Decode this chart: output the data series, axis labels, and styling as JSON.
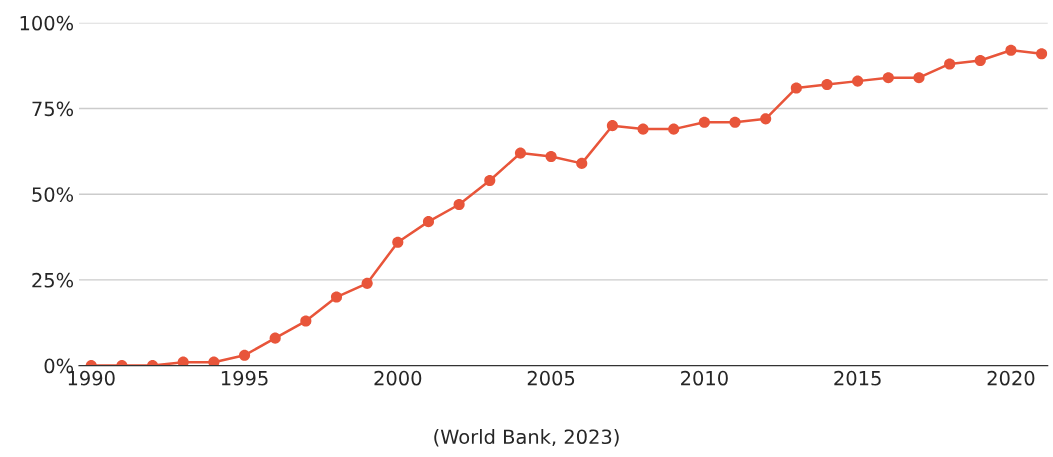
{
  "chart_data": {
    "type": "line",
    "x": [
      1990,
      1991,
      1992,
      1993,
      1994,
      1995,
      1996,
      1997,
      1998,
      1999,
      2000,
      2001,
      2002,
      2003,
      2004,
      2005,
      2006,
      2007,
      2008,
      2009,
      2010,
      2011,
      2012,
      2013,
      2014,
      2015,
      2016,
      2017,
      2018,
      2019,
      2020,
      2021
    ],
    "series": [
      {
        "color": "#e8553a",
        "values": [
          0,
          0,
          0,
          1,
          1,
          3,
          8,
          13,
          20,
          24,
          36,
          42,
          47,
          54,
          62,
          61,
          59,
          70,
          69,
          69,
          71,
          71,
          72,
          81,
          82,
          83,
          84,
          84,
          88,
          89,
          92,
          91
        ]
      }
    ],
    "xlim": [
      1989.6,
      2021.2
    ],
    "xticks": [
      1990,
      1995,
      2000,
      2005,
      2010,
      2015,
      2020
    ],
    "ylim": [
      0,
      100
    ],
    "yticks": [
      {
        "value": 0,
        "label": "0%"
      },
      {
        "value": 25,
        "label": "25%"
      },
      {
        "value": 50,
        "label": "50%"
      },
      {
        "value": 75,
        "label": "75%"
      },
      {
        "value": 100,
        "label": "100%"
      }
    ],
    "grid": "y",
    "marker": "circle",
    "line_style": "solid",
    "annotations": [
      "(World Bank, 2023)"
    ]
  }
}
